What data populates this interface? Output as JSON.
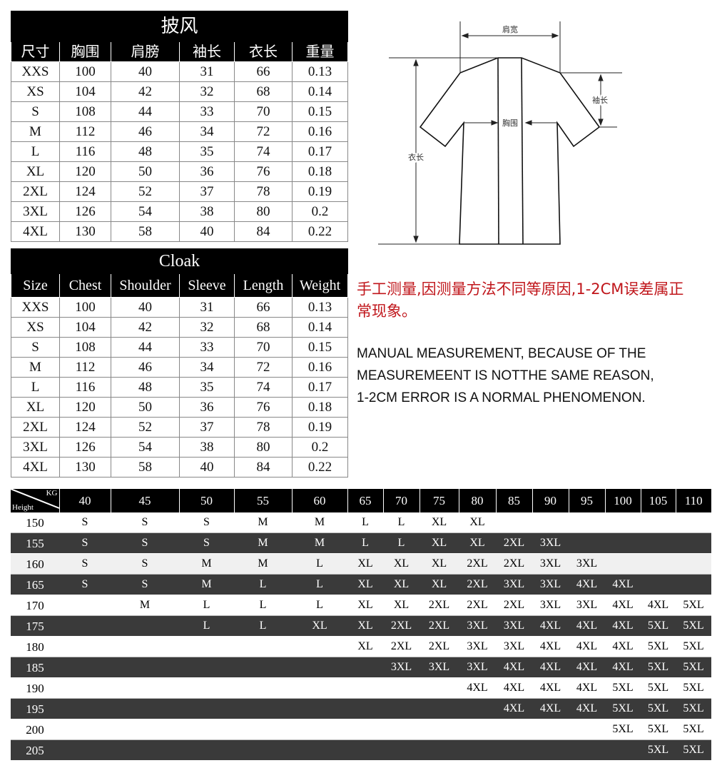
{
  "chinese_table": {
    "title": "披风",
    "headers": [
      "尺寸",
      "胸围",
      "肩膀",
      "袖长",
      "衣长",
      "重量"
    ],
    "rows": [
      [
        "XXS",
        "100",
        "40",
        "31",
        "66",
        "0.13"
      ],
      [
        "XS",
        "104",
        "42",
        "32",
        "68",
        "0.14"
      ],
      [
        "S",
        "108",
        "44",
        "33",
        "70",
        "0.15"
      ],
      [
        "M",
        "112",
        "46",
        "34",
        "72",
        "0.16"
      ],
      [
        "L",
        "116",
        "48",
        "35",
        "74",
        "0.17"
      ],
      [
        "XL",
        "120",
        "50",
        "36",
        "76",
        "0.18"
      ],
      [
        "2XL",
        "124",
        "52",
        "37",
        "78",
        "0.19"
      ],
      [
        "3XL",
        "126",
        "54",
        "38",
        "80",
        "0.2"
      ],
      [
        "4XL",
        "130",
        "58",
        "40",
        "84",
        "0.22"
      ]
    ]
  },
  "english_table": {
    "title": "Cloak",
    "headers": [
      "Size",
      "Chest",
      "Shoulder",
      "Sleeve",
      "Length",
      "Weight"
    ],
    "rows": [
      [
        "XXS",
        "100",
        "40",
        "31",
        "66",
        "0.13"
      ],
      [
        "XS",
        "104",
        "42",
        "32",
        "68",
        "0.14"
      ],
      [
        "S",
        "108",
        "44",
        "33",
        "70",
        "0.15"
      ],
      [
        "M",
        "112",
        "46",
        "34",
        "72",
        "0.16"
      ],
      [
        "L",
        "116",
        "48",
        "35",
        "74",
        "0.17"
      ],
      [
        "XL",
        "120",
        "50",
        "36",
        "76",
        "0.18"
      ],
      [
        "2XL",
        "124",
        "52",
        "37",
        "78",
        "0.19"
      ],
      [
        "3XL",
        "126",
        "54",
        "38",
        "80",
        "0.2"
      ],
      [
        "4XL",
        "130",
        "58",
        "40",
        "84",
        "0.22"
      ]
    ]
  },
  "diagram": {
    "shoulder_label": "肩宽",
    "sleeve_label": "袖长",
    "chest_label": "胸围",
    "length_label": "衣长"
  },
  "notes": {
    "chinese": "手工测量,因测量方法不同等原因,1-2CM误差属正常现象。",
    "english_lines": [
      "MANUAL  MEASUREMENT,  BECAUSE  OF THE",
      "MEASUREMEENT IS   NOTTHE  SAME   REASON,",
      "1-2CM  ERROR  IS  A  NORMAL  PHENOMENON."
    ]
  },
  "recommendation_table": {
    "corner_top": "KG",
    "corner_bottom": "Height",
    "weights": [
      "40",
      "45",
      "50",
      "55",
      "60",
      "65",
      "70",
      "75",
      "80",
      "85",
      "90",
      "95",
      "100",
      "105",
      "110"
    ],
    "rows": [
      {
        "height": "150",
        "sizes": [
          "S",
          "S",
          "S",
          "M",
          "M",
          "L",
          "L",
          "XL",
          "XL",
          "",
          "",
          "",
          "",
          "",
          ""
        ]
      },
      {
        "height": "155",
        "sizes": [
          "S",
          "S",
          "S",
          "M",
          "M",
          "L",
          "L",
          "XL",
          "XL",
          "2XL",
          "3XL",
          "",
          "",
          "",
          ""
        ]
      },
      {
        "height": "160",
        "sizes": [
          "S",
          "S",
          "M",
          "M",
          "L",
          "XL",
          "XL",
          "XL",
          "2XL",
          "2XL",
          "3XL",
          "3XL",
          "",
          "",
          ""
        ]
      },
      {
        "height": "165",
        "sizes": [
          "S",
          "S",
          "M",
          "L",
          "L",
          "XL",
          "XL",
          "XL",
          "2XL",
          "3XL",
          "3XL",
          "4XL",
          "4XL",
          "",
          ""
        ]
      },
      {
        "height": "170",
        "sizes": [
          "",
          "M",
          "L",
          "L",
          "L",
          "XL",
          "XL",
          "2XL",
          "2XL",
          "2XL",
          "3XL",
          "3XL",
          "4XL",
          "4XL",
          "5XL"
        ]
      },
      {
        "height": "175",
        "sizes": [
          "",
          "",
          "L",
          "L",
          "XL",
          "XL",
          "2XL",
          "2XL",
          "3XL",
          "3XL",
          "4XL",
          "4XL",
          "4XL",
          "5XL",
          "5XL"
        ]
      },
      {
        "height": "180",
        "sizes": [
          "",
          "",
          "",
          "",
          "",
          "XL",
          "2XL",
          "2XL",
          "3XL",
          "3XL",
          "4XL",
          "4XL",
          "4XL",
          "5XL",
          "5XL"
        ]
      },
      {
        "height": "185",
        "sizes": [
          "",
          "",
          "",
          "",
          "",
          "",
          "3XL",
          "3XL",
          "3XL",
          "4XL",
          "4XL",
          "4XL",
          "4XL",
          "5XL",
          "5XL"
        ]
      },
      {
        "height": "190",
        "sizes": [
          "",
          "",
          "",
          "",
          "",
          "",
          "",
          "",
          "4XL",
          "4XL",
          "4XL",
          "4XL",
          "5XL",
          "5XL",
          "5XL"
        ]
      },
      {
        "height": "195",
        "sizes": [
          "",
          "",
          "",
          "",
          "",
          "",
          "",
          "",
          "",
          "4XL",
          "4XL",
          "4XL",
          "5XL",
          "5XL",
          "5XL"
        ]
      },
      {
        "height": "200",
        "sizes": [
          "",
          "",
          "",
          "",
          "",
          "",
          "",
          "",
          "",
          "",
          "",
          "",
          "5XL",
          "5XL",
          "5XL"
        ]
      },
      {
        "height": "205",
        "sizes": [
          "",
          "",
          "",
          "",
          "",
          "",
          "",
          "",
          "",
          "",
          "",
          "",
          "",
          "5XL",
          "5XL"
        ]
      }
    ]
  },
  "colors": {
    "note_red": "#c0161b",
    "header_black": "#000000",
    "dark_row": "#3a3a3a",
    "light_row": "#f0f0f0"
  }
}
